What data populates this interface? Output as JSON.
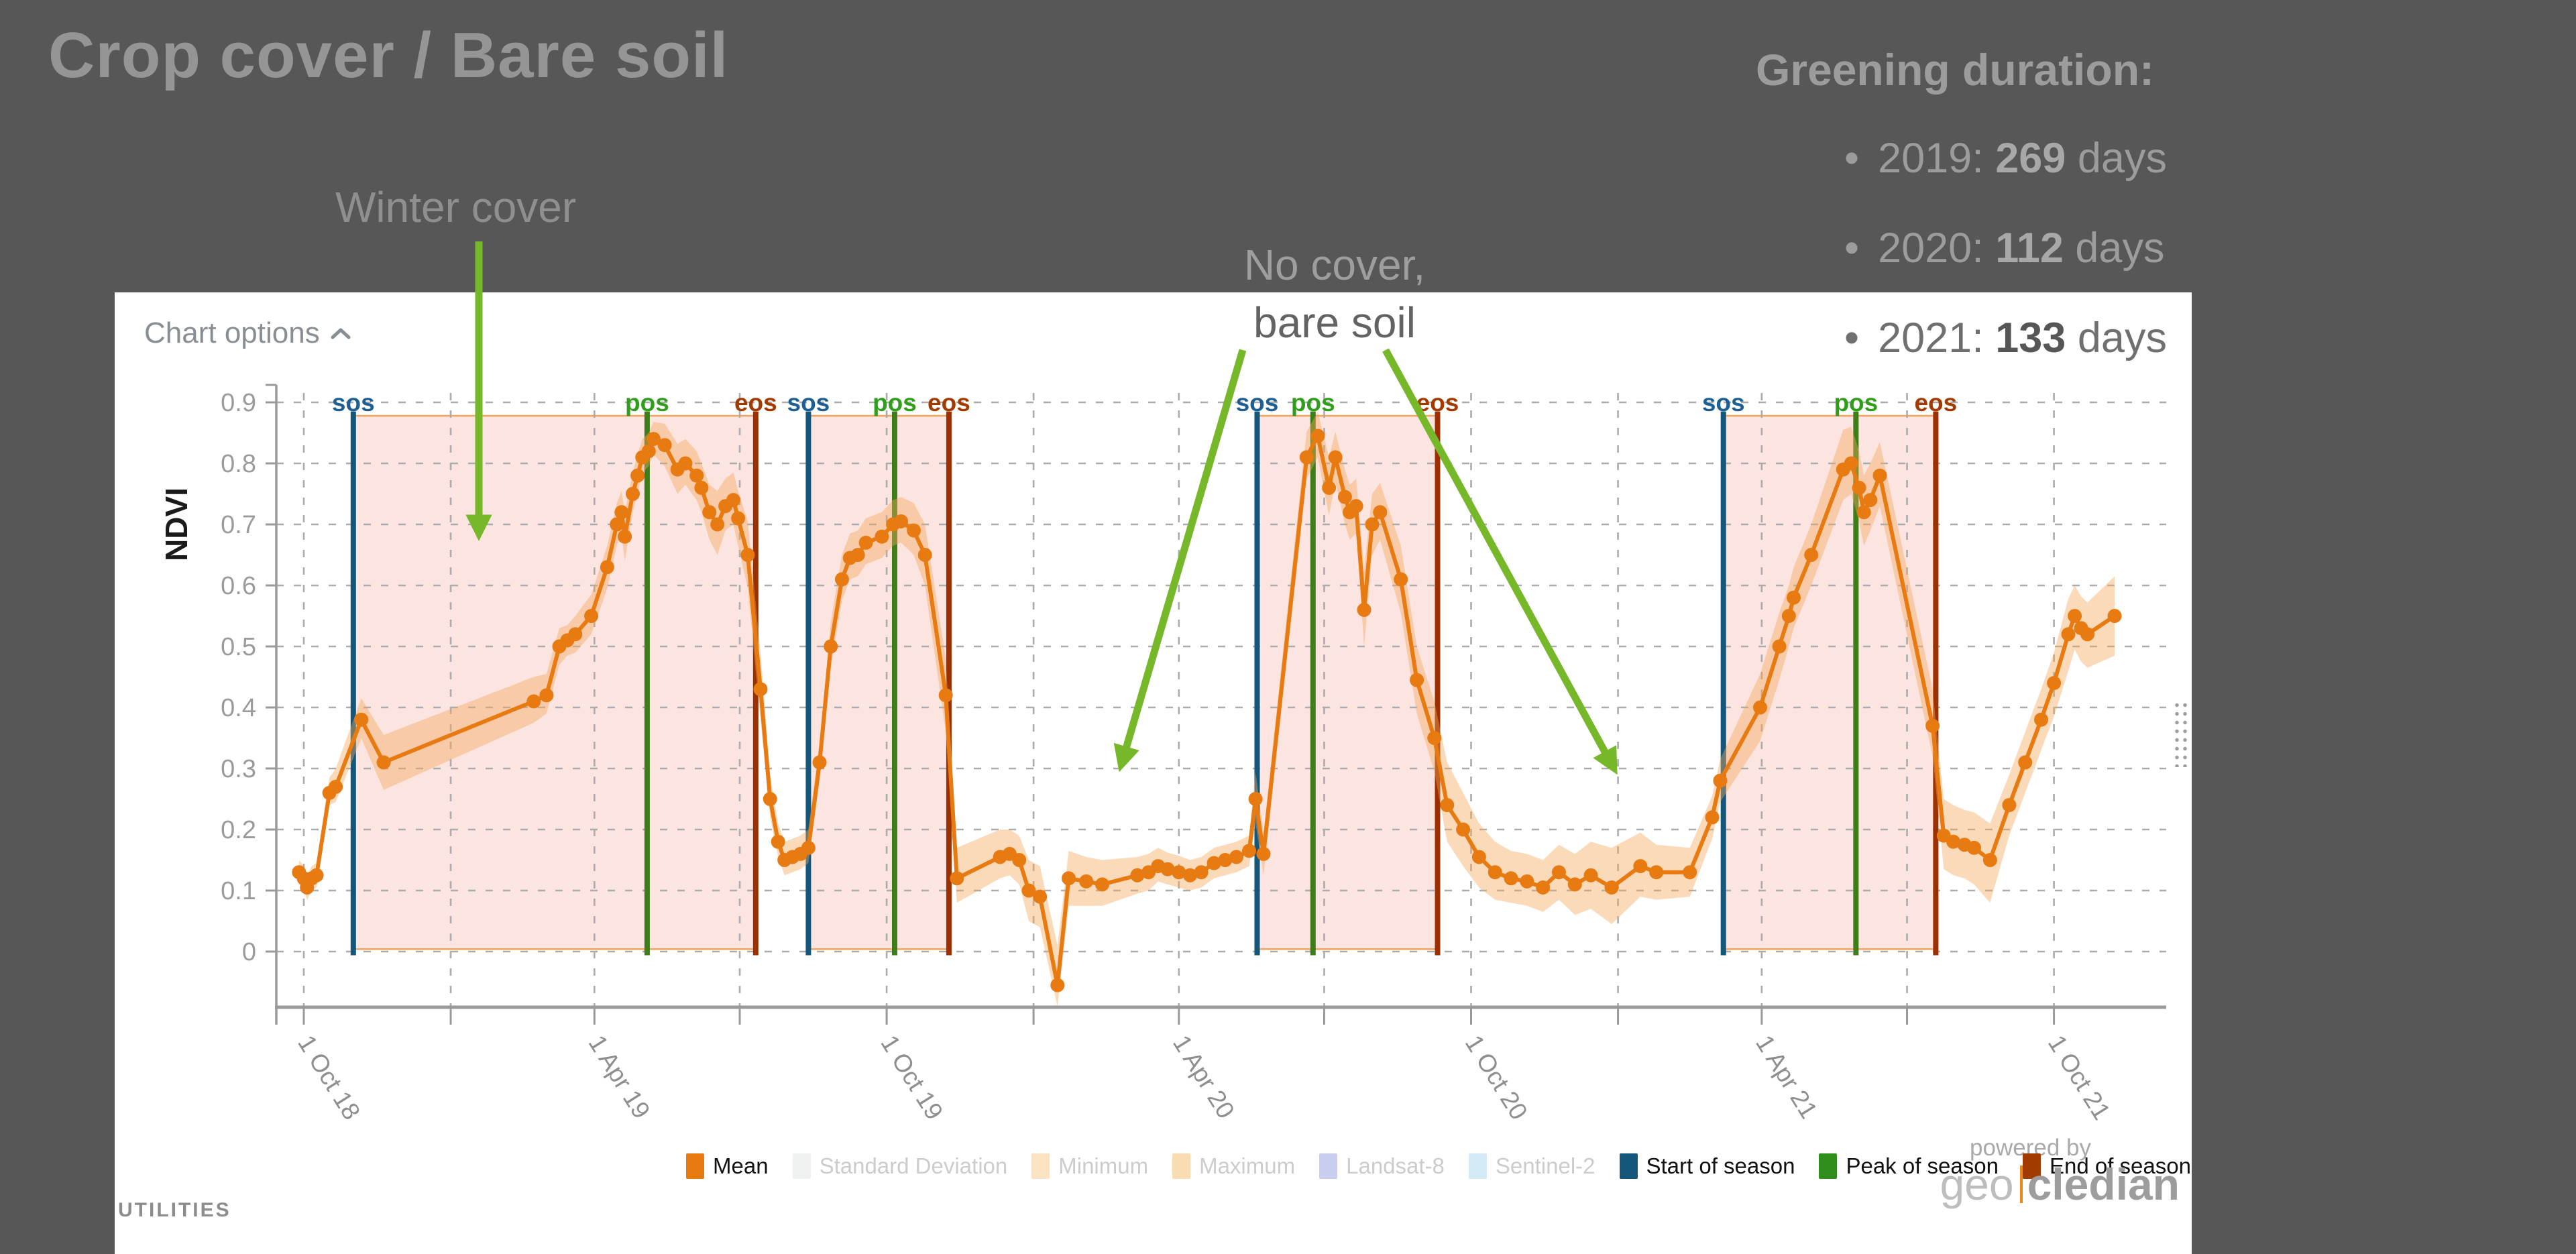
{
  "title": "Crop cover / Bare soil",
  "annotations": {
    "winter_cover": "Winter cover",
    "no_cover_line1": "No cover,",
    "no_cover_line2": "bare soil",
    "greening_heading": "Greening duration:",
    "bullet": "•",
    "greening_items": [
      {
        "year": "2019:",
        "days": "269",
        "suffix": "days"
      },
      {
        "year": "2020:",
        "days": "112",
        "suffix": "days"
      },
      {
        "year": "2021:",
        "days": "133",
        "suffix": "days"
      }
    ]
  },
  "chart_options_label": "Chart options",
  "utilities_label": "UTILITIES",
  "powered_by": "powered by",
  "logo": {
    "part1": "geo",
    "part2": "cledian"
  },
  "colors": {
    "page_bg": "#575757",
    "panel_bg": "#ffffff",
    "accent_green": "#76b82a",
    "mean_orange": "#e87a12",
    "band_fill": "rgba(243,167,88,0.42)",
    "season_fill": "rgba(242,120,105,0.20)",
    "season_border": "#f0a35c",
    "sos": "#15567b",
    "pos": "#3f7d1a",
    "eos": "#9c3000",
    "sos_label": "#1d5f92",
    "pos_label": "#2f9e1b",
    "eos_label": "#a33a00",
    "grid": "#ababab",
    "axis": "#9a9a9a",
    "tick_text": "#8f8f8f"
  },
  "legend": [
    {
      "label": "Mean",
      "color": "#e87a12",
      "text_color": "#111111"
    },
    {
      "label": "Standard Deviation",
      "color": "#eef1ef",
      "text_color": "#cccccc"
    },
    {
      "label": "Minimum",
      "color": "#fae3c0",
      "text_color": "#cccccc"
    },
    {
      "label": "Maximum",
      "color": "#fadcb2",
      "text_color": "#cccccc"
    },
    {
      "label": "Landsat-8",
      "color": "#c9cdf0",
      "text_color": "#cccccc"
    },
    {
      "label": "Sentinel-2",
      "color": "#d4ebf7",
      "text_color": "#cccccc"
    },
    {
      "label": "Start of season",
      "color": "#15567b",
      "text_color": "#111111"
    },
    {
      "label": "Peak of season",
      "color": "#2f8f1d",
      "text_color": "#111111"
    },
    {
      "label": "End of season",
      "color": "#a33a00",
      "text_color": "#111111"
    }
  ],
  "chart_data": {
    "type": "line",
    "ylabel": "NDVI",
    "ylim": [
      -0.09,
      0.92
    ],
    "grid": true,
    "legend_position": "bottom",
    "yticks": [
      0,
      0.1,
      0.2,
      0.3,
      0.4,
      0.5,
      0.6,
      0.7,
      0.8,
      0.9
    ],
    "x_domain": [
      "2018-09-12",
      "2021-12-16"
    ],
    "x_origin": "2018-10-01",
    "xticks": [
      {
        "date": "2018-10-01",
        "label": "1 Oct 18"
      },
      {
        "date": "2019-04-01",
        "label": "1 Apr 19"
      },
      {
        "date": "2019-10-01",
        "label": "1 Oct 19"
      },
      {
        "date": "2020-04-01",
        "label": "1 Apr 20"
      },
      {
        "date": "2020-10-01",
        "label": "1 Oct 20"
      },
      {
        "date": "2021-04-01",
        "label": "1 Apr 21"
      },
      {
        "date": "2021-10-01",
        "label": "1 Oct 21"
      }
    ],
    "minor_gridlines": [
      "2019-01-01",
      "2019-07-01",
      "2020-01-01",
      "2020-07-01",
      "2021-01-01",
      "2021-07-01"
    ],
    "season_labels": {
      "sos": "sos",
      "pos": "pos",
      "eos": "eos"
    },
    "seasons": [
      {
        "sos": "2018-11-01",
        "pos": "2019-05-04",
        "eos": "2019-07-11"
      },
      {
        "sos": "2019-08-13",
        "pos": "2019-10-06",
        "eos": "2019-11-09"
      },
      {
        "sos": "2020-05-20",
        "pos": "2020-06-24",
        "eos": "2020-09-10"
      },
      {
        "sos": "2021-03-08",
        "pos": "2021-05-30",
        "eos": "2021-07-19"
      }
    ],
    "series_mean": [
      [
        "2018-09-28",
        0.13,
        0.11,
        0.15
      ],
      [
        "2018-10-01",
        0.12,
        0.1,
        0.14
      ],
      [
        "2018-10-03",
        0.105,
        0.085,
        0.125
      ],
      [
        "2018-10-06",
        0.12,
        0.1,
        0.14
      ],
      [
        "2018-10-09",
        0.125,
        0.105,
        0.145
      ],
      [
        "2018-10-17",
        0.26,
        0.24,
        0.285
      ],
      [
        "2018-10-21",
        0.27,
        0.245,
        0.3
      ],
      [
        "2018-11-06",
        0.38,
        0.35,
        0.415
      ],
      [
        "2018-11-20",
        0.31,
        0.265,
        0.355
      ],
      [
        "2019-02-22",
        0.41,
        0.375,
        0.45
      ],
      [
        "2019-03-02",
        0.42,
        0.39,
        0.455
      ],
      [
        "2019-03-10",
        0.5,
        0.47,
        0.53
      ],
      [
        "2019-03-15",
        0.51,
        0.485,
        0.535
      ],
      [
        "2019-03-20",
        0.52,
        0.49,
        0.55
      ],
      [
        "2019-03-30",
        0.55,
        0.52,
        0.585
      ],
      [
        "2019-04-09",
        0.63,
        0.595,
        0.665
      ],
      [
        "2019-04-15",
        0.7,
        0.665,
        0.735
      ],
      [
        "2019-04-18",
        0.72,
        0.685,
        0.755
      ],
      [
        "2019-04-20",
        0.68,
        0.64,
        0.72
      ],
      [
        "2019-04-25",
        0.75,
        0.72,
        0.785
      ],
      [
        "2019-04-28",
        0.78,
        0.75,
        0.815
      ],
      [
        "2019-05-01",
        0.81,
        0.785,
        0.84
      ],
      [
        "2019-05-05",
        0.82,
        0.795,
        0.85
      ],
      [
        "2019-05-08",
        0.84,
        0.815,
        0.868
      ],
      [
        "2019-05-15",
        0.83,
        0.795,
        0.865
      ],
      [
        "2019-05-23",
        0.79,
        0.75,
        0.832
      ],
      [
        "2019-05-28",
        0.8,
        0.765,
        0.84
      ],
      [
        "2019-06-04",
        0.78,
        0.74,
        0.82
      ],
      [
        "2019-06-07",
        0.76,
        0.72,
        0.8
      ],
      [
        "2019-06-12",
        0.72,
        0.675,
        0.765
      ],
      [
        "2019-06-17",
        0.7,
        0.65,
        0.755
      ],
      [
        "2019-06-22",
        0.73,
        0.69,
        0.775
      ],
      [
        "2019-06-27",
        0.74,
        0.7,
        0.785
      ],
      [
        "2019-06-30",
        0.71,
        0.665,
        0.755
      ],
      [
        "2019-07-06",
        0.65,
        0.595,
        0.705
      ],
      [
        "2019-07-14",
        0.43,
        0.38,
        0.49
      ],
      [
        "2019-07-20",
        0.25,
        0.22,
        0.29
      ],
      [
        "2019-07-25",
        0.18,
        0.155,
        0.21
      ],
      [
        "2019-07-29",
        0.15,
        0.125,
        0.18
      ],
      [
        "2019-08-03",
        0.155,
        0.13,
        0.185
      ],
      [
        "2019-08-08",
        0.16,
        0.135,
        0.19
      ],
      [
        "2019-08-13",
        0.17,
        0.145,
        0.2
      ],
      [
        "2019-08-20",
        0.31,
        0.28,
        0.345
      ],
      [
        "2019-08-27",
        0.5,
        0.465,
        0.54
      ],
      [
        "2019-09-03",
        0.61,
        0.575,
        0.65
      ],
      [
        "2019-09-08",
        0.645,
        0.61,
        0.685
      ],
      [
        "2019-09-13",
        0.65,
        0.615,
        0.69
      ],
      [
        "2019-09-18",
        0.67,
        0.635,
        0.71
      ],
      [
        "2019-09-28",
        0.68,
        0.645,
        0.72
      ],
      [
        "2019-10-05",
        0.7,
        0.665,
        0.74
      ],
      [
        "2019-10-10",
        0.705,
        0.67,
        0.745
      ],
      [
        "2019-10-18",
        0.69,
        0.65,
        0.735
      ],
      [
        "2019-10-25",
        0.65,
        0.6,
        0.7
      ],
      [
        "2019-11-07",
        0.42,
        0.36,
        0.48
      ],
      [
        "2019-11-14",
        0.12,
        0.08,
        0.17
      ],
      [
        "2019-12-11",
        0.155,
        0.12,
        0.2
      ],
      [
        "2019-12-17",
        0.16,
        0.125,
        0.2
      ],
      [
        "2019-12-23",
        0.15,
        0.11,
        0.19
      ],
      [
        "2019-12-29",
        0.1,
        0.05,
        0.15
      ],
      [
        "2020-01-05",
        0.09,
        0.04,
        0.14
      ],
      [
        "2020-01-16",
        -0.055,
        -0.09,
        0.01
      ],
      [
        "2020-01-23",
        0.12,
        0.075,
        0.165
      ],
      [
        "2020-02-03",
        0.115,
        0.075,
        0.155
      ],
      [
        "2020-02-13",
        0.11,
        0.075,
        0.15
      ],
      [
        "2020-03-06",
        0.125,
        0.095,
        0.155
      ],
      [
        "2020-03-13",
        0.13,
        0.1,
        0.16
      ],
      [
        "2020-03-19",
        0.14,
        0.115,
        0.17
      ],
      [
        "2020-03-25",
        0.135,
        0.11,
        0.162
      ],
      [
        "2020-04-01",
        0.13,
        0.105,
        0.157
      ],
      [
        "2020-04-08",
        0.125,
        0.1,
        0.15
      ],
      [
        "2020-04-15",
        0.13,
        0.105,
        0.155
      ],
      [
        "2020-04-23",
        0.145,
        0.12,
        0.17
      ],
      [
        "2020-04-30",
        0.15,
        0.125,
        0.175
      ],
      [
        "2020-05-07",
        0.155,
        0.13,
        0.18
      ],
      [
        "2020-05-15",
        0.165,
        0.14,
        0.19
      ],
      [
        "2020-05-19",
        0.25,
        0.21,
        0.295
      ],
      [
        "2020-05-24",
        0.16,
        0.125,
        0.195
      ],
      [
        "2020-06-20",
        0.81,
        0.775,
        0.852
      ],
      [
        "2020-06-27",
        0.845,
        0.81,
        0.885
      ],
      [
        "2020-07-04",
        0.76,
        0.715,
        0.81
      ],
      [
        "2020-07-08",
        0.81,
        0.77,
        0.852
      ],
      [
        "2020-07-14",
        0.745,
        0.7,
        0.79
      ],
      [
        "2020-07-17",
        0.72,
        0.675,
        0.765
      ],
      [
        "2020-07-21",
        0.73,
        0.685,
        0.775
      ],
      [
        "2020-07-26",
        0.56,
        0.5,
        0.625
      ],
      [
        "2020-07-31",
        0.7,
        0.65,
        0.75
      ],
      [
        "2020-08-05",
        0.72,
        0.675,
        0.768
      ],
      [
        "2020-08-18",
        0.61,
        0.555,
        0.665
      ],
      [
        "2020-08-28",
        0.445,
        0.39,
        0.5
      ],
      [
        "2020-09-08",
        0.35,
        0.295,
        0.41
      ],
      [
        "2020-09-16",
        0.24,
        0.18,
        0.31
      ],
      [
        "2020-09-26",
        0.2,
        0.14,
        0.26
      ],
      [
        "2020-10-06",
        0.155,
        0.105,
        0.21
      ],
      [
        "2020-10-16",
        0.13,
        0.085,
        0.18
      ],
      [
        "2020-10-26",
        0.12,
        0.08,
        0.165
      ],
      [
        "2020-11-05",
        0.115,
        0.075,
        0.16
      ],
      [
        "2020-11-15",
        0.105,
        0.065,
        0.15
      ],
      [
        "2020-11-25",
        0.13,
        0.085,
        0.175
      ],
      [
        "2020-12-05",
        0.11,
        0.06,
        0.16
      ],
      [
        "2020-12-15",
        0.125,
        0.07,
        0.18
      ],
      [
        "2020-12-28",
        0.105,
        0.045,
        0.17
      ],
      [
        "2021-01-15",
        0.14,
        0.09,
        0.195
      ],
      [
        "2021-01-25",
        0.13,
        0.085,
        0.175
      ],
      [
        "2021-02-15",
        0.13,
        0.09,
        0.17
      ],
      [
        "2021-03-01",
        0.22,
        0.185,
        0.255
      ],
      [
        "2021-03-06",
        0.28,
        0.245,
        0.315
      ],
      [
        "2021-03-31",
        0.4,
        0.345,
        0.455
      ],
      [
        "2021-04-12",
        0.5,
        0.445,
        0.555
      ],
      [
        "2021-04-18",
        0.55,
        0.5,
        0.6
      ],
      [
        "2021-04-21",
        0.58,
        0.53,
        0.63
      ],
      [
        "2021-05-02",
        0.65,
        0.6,
        0.7
      ],
      [
        "2021-05-22",
        0.79,
        0.74,
        0.855
      ],
      [
        "2021-05-27",
        0.8,
        0.75,
        0.86
      ],
      [
        "2021-06-01",
        0.76,
        0.705,
        0.82
      ],
      [
        "2021-06-04",
        0.72,
        0.665,
        0.78
      ],
      [
        "2021-06-08",
        0.74,
        0.69,
        0.8
      ],
      [
        "2021-06-14",
        0.78,
        0.73,
        0.835
      ],
      [
        "2021-07-17",
        0.37,
        0.32,
        0.43
      ],
      [
        "2021-07-24",
        0.19,
        0.135,
        0.25
      ],
      [
        "2021-07-30",
        0.18,
        0.125,
        0.24
      ],
      [
        "2021-08-06",
        0.175,
        0.12,
        0.232
      ],
      [
        "2021-08-12",
        0.17,
        0.11,
        0.228
      ],
      [
        "2021-08-22",
        0.15,
        0.08,
        0.21
      ],
      [
        "2021-09-03",
        0.24,
        0.19,
        0.29
      ],
      [
        "2021-09-13",
        0.31,
        0.26,
        0.36
      ],
      [
        "2021-09-23",
        0.38,
        0.33,
        0.43
      ],
      [
        "2021-10-01",
        0.44,
        0.385,
        0.49
      ],
      [
        "2021-10-10",
        0.52,
        0.46,
        0.578
      ],
      [
        "2021-10-14",
        0.55,
        0.495,
        0.6
      ],
      [
        "2021-10-18",
        0.53,
        0.475,
        0.582
      ],
      [
        "2021-10-22",
        0.52,
        0.465,
        0.572
      ],
      [
        "2021-11-08",
        0.55,
        0.485,
        0.615
      ]
    ]
  }
}
